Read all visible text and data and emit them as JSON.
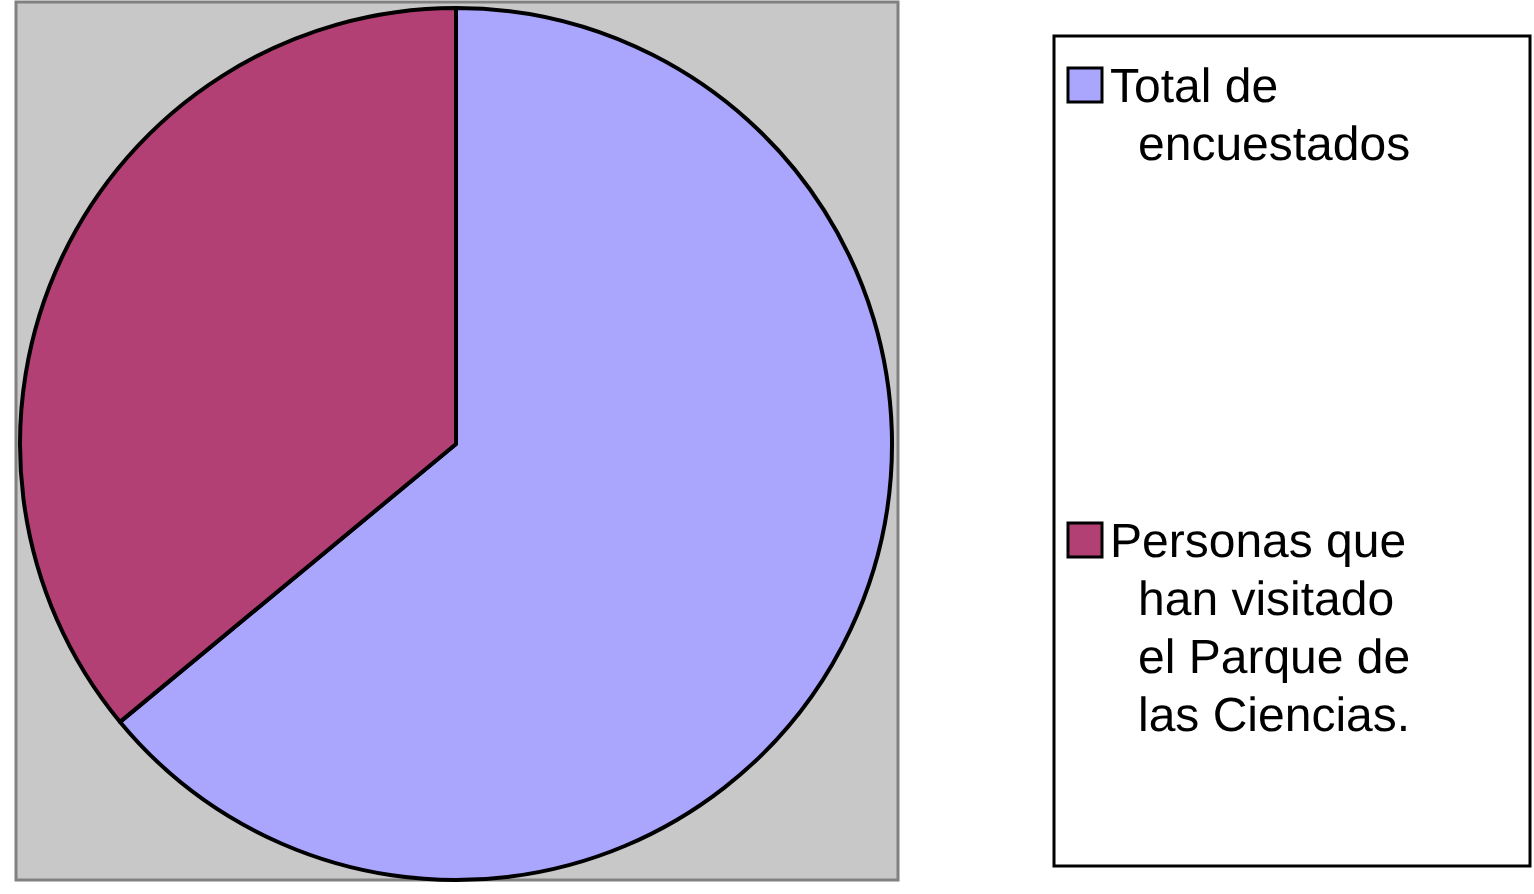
{
  "chart_data": {
    "type": "pie",
    "categories": [
      "Total de encuestados",
      "Personas que han visitado el Parque de las Ciencias."
    ],
    "values": [
      64,
      36
    ],
    "colors": [
      "#aaa6fe",
      "#b24074"
    ],
    "legend": "right"
  }
}
